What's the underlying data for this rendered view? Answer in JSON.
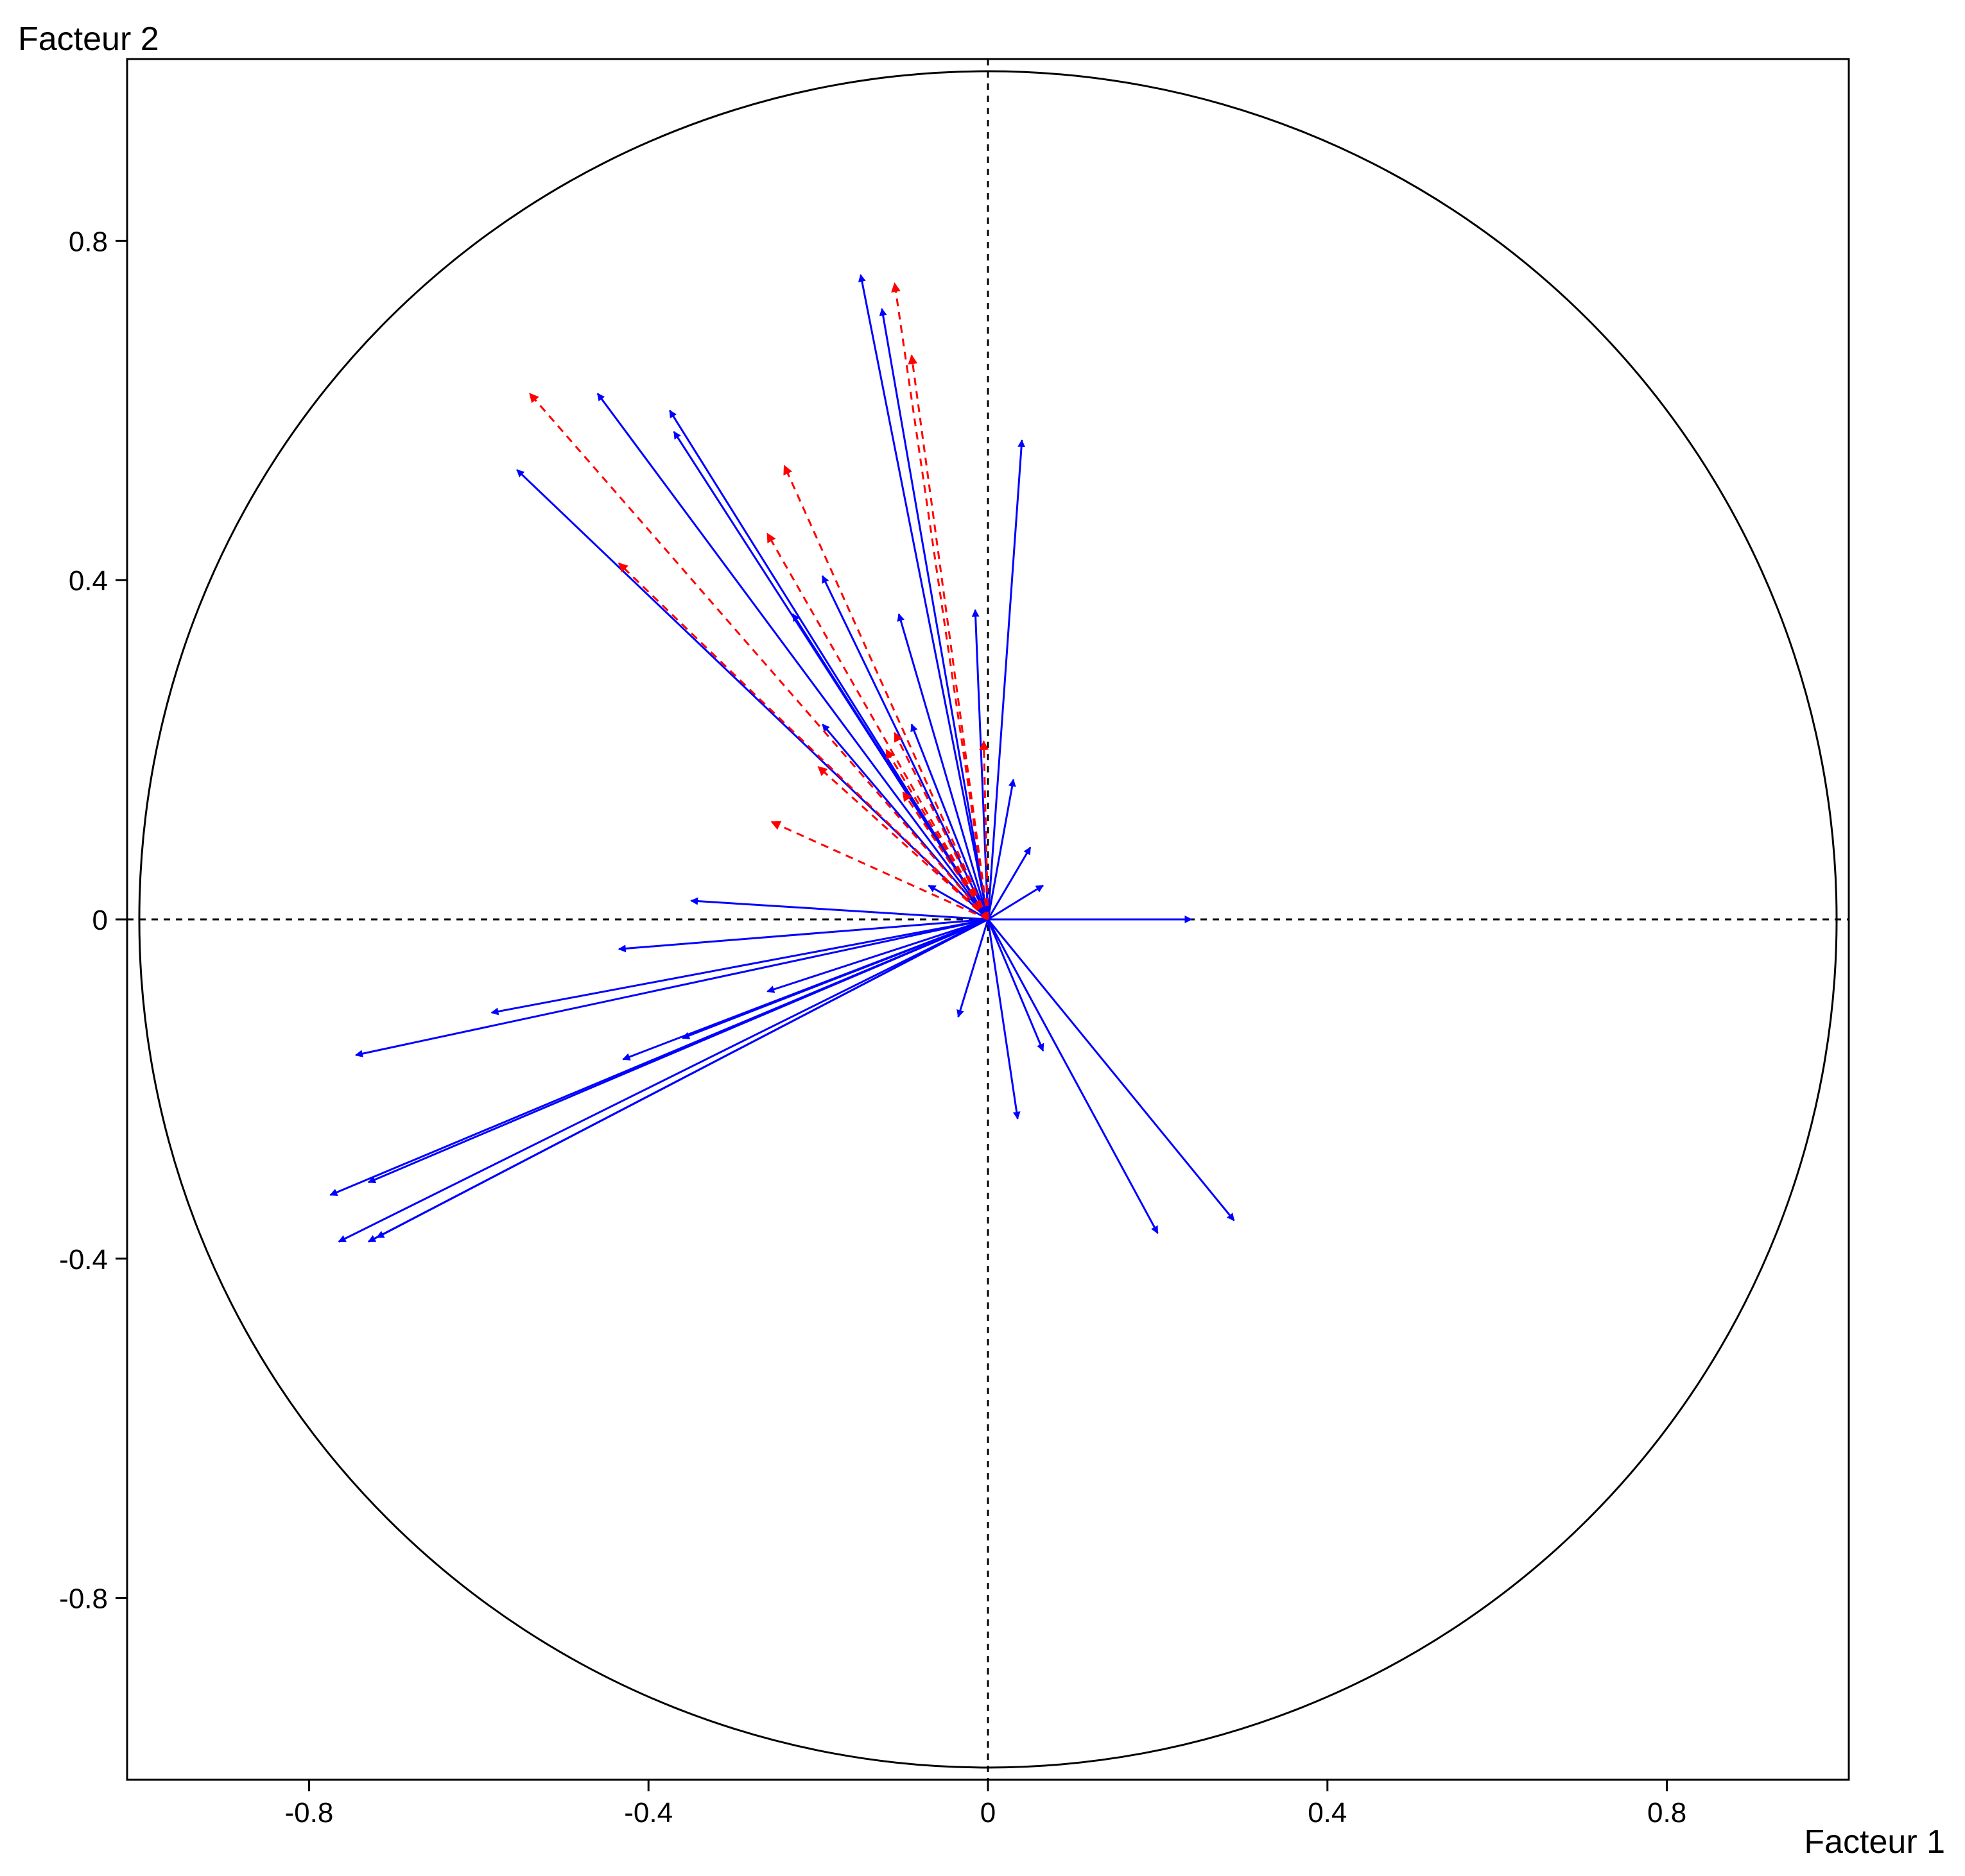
{
  "chart_data": {
    "type": "correlation-circle",
    "xlabel": "Facteur 1",
    "ylabel": "Facteur 2",
    "xlim": [
      -1.01,
      1.01
    ],
    "ylim": [
      -1.01,
      1.01
    ],
    "x_ticks": [
      -0.8,
      -0.4,
      0,
      0.4,
      0.8
    ],
    "x_tick_labels": [
      "-0.8",
      "-0.4",
      "0",
      "0.4",
      "0.8"
    ],
    "y_ticks": [
      0.8,
      0.4,
      0,
      -0.4,
      -0.8
    ],
    "y_tick_labels": [
      "0.8",
      "0.4",
      "0",
      "-0.4",
      "-0.8"
    ],
    "circle_radius": 1,
    "grid": false,
    "reference_lines": [
      "x=0 dashed",
      "y=0 dashed"
    ],
    "colors": {
      "active": "#0000ff",
      "supplementary": "#ff0000",
      "axes": "#000000"
    },
    "series": [
      {
        "style": "solid",
        "color": "#0000ff",
        "points": [
          {
            "x": -0.15,
            "y": 0.76
          },
          {
            "x": -0.125,
            "y": 0.72
          },
          {
            "x": -0.46,
            "y": 0.62
          },
          {
            "x": -0.375,
            "y": 0.6
          },
          {
            "x": -0.37,
            "y": 0.575
          },
          {
            "x": -0.555,
            "y": 0.53
          },
          {
            "x": 0.04,
            "y": 0.565
          },
          {
            "x": -0.195,
            "y": 0.405
          },
          {
            "x": -0.105,
            "y": 0.36
          },
          {
            "x": -0.015,
            "y": 0.365
          },
          {
            "x": -0.23,
            "y": 0.36
          },
          {
            "x": -0.09,
            "y": 0.23
          },
          {
            "x": -0.195,
            "y": 0.23
          },
          {
            "x": 0.03,
            "y": 0.165
          },
          {
            "x": 0.05,
            "y": 0.085
          },
          {
            "x": 0.065,
            "y": 0.04
          },
          {
            "x": -0.07,
            "y": 0.04
          },
          {
            "x": -0.025,
            "y": 0.03
          },
          {
            "x": -0.35,
            "y": 0.022
          },
          {
            "x": 0.24,
            "y": 0.0
          },
          {
            "x": -0.435,
            "y": -0.035
          },
          {
            "x": -0.585,
            "y": -0.11
          },
          {
            "x": -0.745,
            "y": -0.16
          },
          {
            "x": -0.26,
            "y": -0.085
          },
          {
            "x": -0.36,
            "y": -0.14
          },
          {
            "x": -0.43,
            "y": -0.165
          },
          {
            "x": -0.775,
            "y": -0.325
          },
          {
            "x": -0.73,
            "y": -0.31
          },
          {
            "x": -0.765,
            "y": -0.38
          },
          {
            "x": -0.73,
            "y": -0.38
          },
          {
            "x": -0.72,
            "y": -0.375
          },
          {
            "x": -0.035,
            "y": -0.115
          },
          {
            "x": 0.035,
            "y": -0.235
          },
          {
            "x": 0.065,
            "y": -0.155
          },
          {
            "x": 0.2,
            "y": -0.37
          },
          {
            "x": 0.29,
            "y": -0.355
          }
        ]
      },
      {
        "style": "dashed",
        "color": "#ff0000",
        "points": [
          {
            "x": -0.11,
            "y": 0.75
          },
          {
            "x": -0.09,
            "y": 0.665
          },
          {
            "x": -0.54,
            "y": 0.62
          },
          {
            "x": -0.24,
            "y": 0.535
          },
          {
            "x": -0.26,
            "y": 0.455
          },
          {
            "x": -0.435,
            "y": 0.42
          },
          {
            "x": -0.11,
            "y": 0.22
          },
          {
            "x": -0.12,
            "y": 0.2
          },
          {
            "x": -0.005,
            "y": 0.21
          },
          {
            "x": -0.2,
            "y": 0.18
          },
          {
            "x": -0.1,
            "y": 0.15
          },
          {
            "x": -0.255,
            "y": 0.115
          }
        ]
      }
    ]
  }
}
